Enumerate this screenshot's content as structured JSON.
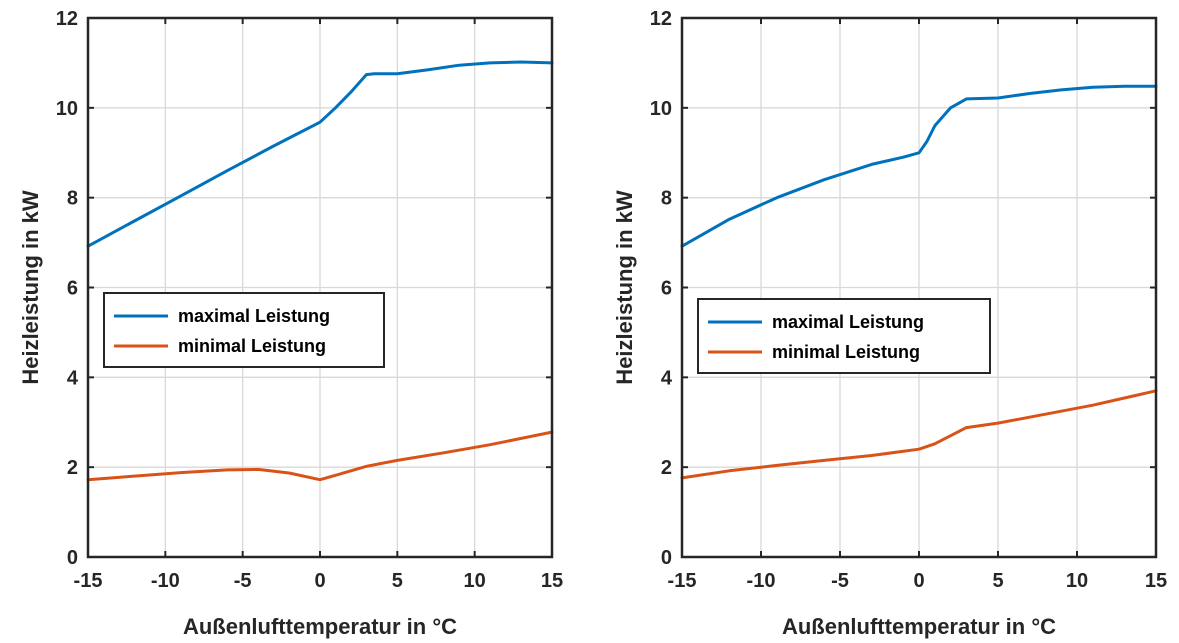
{
  "chart_data": [
    {
      "type": "line",
      "xlabel": "Außenlufttemperatur in °C",
      "ylabel": "Heizleistung in kW",
      "xlim": [
        -15,
        15
      ],
      "ylim": [
        0,
        12
      ],
      "xticks": [
        "-15",
        "-10",
        "-5",
        "0",
        "5",
        "10",
        "15"
      ],
      "yticks": [
        "0",
        "2",
        "4",
        "6",
        "8",
        "10",
        "12"
      ],
      "grid": true,
      "legend_position": "middle-left",
      "series": [
        {
          "name": "maximal Leistung",
          "color": "#0072BD",
          "x": [
            -15,
            -12,
            -9,
            -6,
            -3,
            0,
            1,
            2,
            3,
            3.5,
            5,
            7,
            9,
            11,
            13,
            15
          ],
          "y": [
            6.92,
            7.48,
            8.04,
            8.6,
            9.15,
            9.68,
            10.0,
            10.35,
            10.74,
            10.76,
            10.76,
            10.85,
            10.95,
            11.0,
            11.02,
            11.0
          ]
        },
        {
          "name": "minimal Leistung",
          "color": "#D95319",
          "x": [
            -15,
            -12,
            -9,
            -6,
            -4,
            -2,
            0,
            1,
            3,
            5,
            8,
            11,
            15
          ],
          "y": [
            1.72,
            1.8,
            1.88,
            1.94,
            1.95,
            1.87,
            1.72,
            1.82,
            2.02,
            2.15,
            2.32,
            2.5,
            2.78
          ]
        }
      ]
    },
    {
      "type": "line",
      "xlabel": "Außenlufttemperatur in °C",
      "ylabel": "Heizleistung in kW",
      "xlim": [
        -15,
        15
      ],
      "ylim": [
        0,
        12
      ],
      "xticks": [
        "-15",
        "-10",
        "-5",
        "0",
        "5",
        "10",
        "15"
      ],
      "yticks": [
        "0",
        "2",
        "4",
        "6",
        "8",
        "10",
        "12"
      ],
      "grid": true,
      "legend_position": "middle-left",
      "series": [
        {
          "name": "maximal Leistung",
          "color": "#0072BD",
          "x": [
            -15,
            -12,
            -9,
            -6,
            -3,
            -1,
            0,
            0.5,
            1,
            2,
            3,
            5,
            7,
            9,
            11,
            13,
            15
          ],
          "y": [
            6.92,
            7.52,
            8.0,
            8.4,
            8.74,
            8.9,
            9.0,
            9.25,
            9.6,
            10.0,
            10.2,
            10.22,
            10.32,
            10.4,
            10.46,
            10.48,
            10.48
          ]
        },
        {
          "name": "minimal Leistung",
          "color": "#D95319",
          "x": [
            -15,
            -12,
            -9,
            -6,
            -3,
            0,
            1,
            2,
            3,
            5,
            8,
            11,
            13,
            15
          ],
          "y": [
            1.76,
            1.92,
            2.04,
            2.15,
            2.26,
            2.4,
            2.52,
            2.7,
            2.88,
            2.98,
            3.18,
            3.38,
            3.54,
            3.7
          ]
        }
      ]
    }
  ]
}
